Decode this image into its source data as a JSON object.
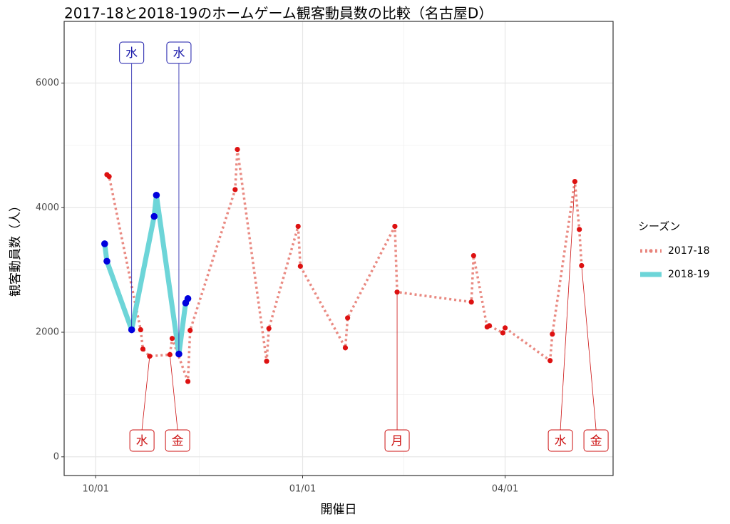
{
  "chart_data": {
    "type": "line",
    "title": "2017-18と2018-19のホームゲーム観客動員数の比較（名古屋D）",
    "x_label": "開催日",
    "y_label": "観客動員数（人）",
    "legend_title": "シーズン",
    "legend_position": "right",
    "grid": true,
    "xlim": [
      "09/17",
      "05/19"
    ],
    "xticks": [
      "10/01",
      "01/01",
      "04/01"
    ],
    "ylim": [
      -300,
      6990
    ],
    "yticks": [
      0,
      2000,
      4000,
      6000
    ],
    "series": [
      {
        "name": "2017-18",
        "color": "#e8837a",
        "point_color": "#dd1111",
        "line_style": "dotted",
        "x": [
          "10/06",
          "10/07",
          "10/21",
          "10/22",
          "10/25",
          "11/03",
          "11/04",
          "11/11",
          "11/12",
          "12/02",
          "12/03",
          "12/16",
          "12/17",
          "12/30",
          "12/31",
          "01/20",
          "01/21",
          "02/11",
          "02/12",
          "03/17",
          "03/18",
          "03/24",
          "03/25",
          "03/31",
          "04/01",
          "04/21",
          "04/22",
          "05/02",
          "05/04",
          "05/05"
        ],
        "values": [
          4530,
          4500,
          2040,
          1730,
          1615,
          1640,
          1900,
          1210,
          2030,
          4290,
          4935,
          1535,
          2060,
          3700,
          3060,
          1750,
          2230,
          3700,
          2645,
          2485,
          3230,
          2085,
          2105,
          1990,
          2070,
          1545,
          1970,
          4420,
          3650,
          3070
        ]
      },
      {
        "name": "2018-19",
        "color": "#6dd5d8",
        "point_color": "#0000dd",
        "line_style": "solid",
        "x": [
          "10/05",
          "10/06",
          "10/17",
          "10/27",
          "10/28",
          "11/07",
          "11/10",
          "11/11"
        ],
        "values": [
          3420,
          3140,
          2040,
          3860,
          4200,
          1650,
          2470,
          2540
        ]
      }
    ],
    "annotations": [
      {
        "series": "2018-19",
        "x": "10/17",
        "text": "水"
      },
      {
        "series": "2018-19",
        "x": "11/07",
        "text": "水"
      },
      {
        "series": "2017-18",
        "x": "10/25",
        "text": "水"
      },
      {
        "series": "2017-18",
        "x": "11/03",
        "text": "金"
      },
      {
        "series": "2017-18",
        "x": "02/12",
        "text": "月"
      },
      {
        "series": "2017-18",
        "x": "05/02",
        "text": "水"
      },
      {
        "series": "2017-18",
        "x": "05/05",
        "text": "金"
      }
    ]
  }
}
